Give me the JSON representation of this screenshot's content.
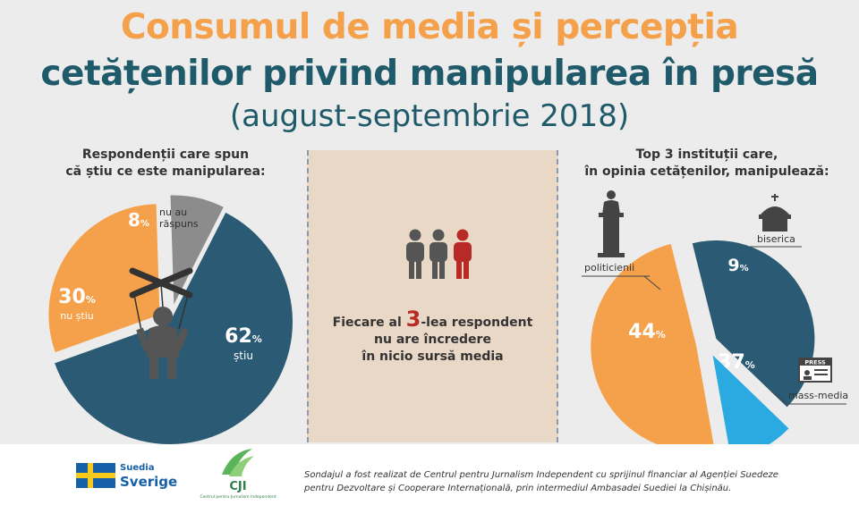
{
  "header": {
    "title_line1": "Consumul de media și percepția",
    "title_line2": "cetățenilor privind manipularea în presă",
    "subtitle": "(august-septembrie 2018)"
  },
  "left_section": {
    "heading_line1": "Respondenții care spun",
    "heading_line2": "că știu ce este manipularea:"
  },
  "center_section": {
    "line1_pre": "Fiecare al ",
    "line1_num": "3",
    "line1_post": "-lea respondent",
    "line2": "nu are încredere",
    "line3": "în nicio sursă media"
  },
  "right_section": {
    "heading_line1": "Top 3 instituții care,",
    "heading_line2": "în opinia cetățenilor, manipulează:",
    "press_badge": "PRESS"
  },
  "footer": {
    "sweden_line1": "Suedia",
    "sweden_line2": "Sverige",
    "cji_logo": "CJI",
    "cji_subtext": "Centrul pentru Jurnalism Independent",
    "note_line1": "Sondajul a fost realizat de Centrul pentru Jurnalism Independent cu sprijinul financiar al Agenției Suedeze",
    "note_line2": "pentru Dezvoltare și Cooperare Internațională, prin intermediul Ambasadei Suediei la Chișinău."
  },
  "chart_data": [
    {
      "type": "pie",
      "categories": [
        "știu",
        "nu știu",
        "nu au răspuns"
      ],
      "values": [
        62,
        30,
        8
      ],
      "value_suffix": "%",
      "colors": [
        "#2b5a74",
        "#f5a04a",
        "#8c8c8c"
      ]
    },
    {
      "type": "pie",
      "categories": [
        "politicienii",
        "mass-media",
        "biserica"
      ],
      "values": [
        44,
        37,
        9
      ],
      "value_suffix": "%",
      "colors": [
        "#f5a04a",
        "#2b5a74",
        "#2aaae1"
      ]
    }
  ]
}
